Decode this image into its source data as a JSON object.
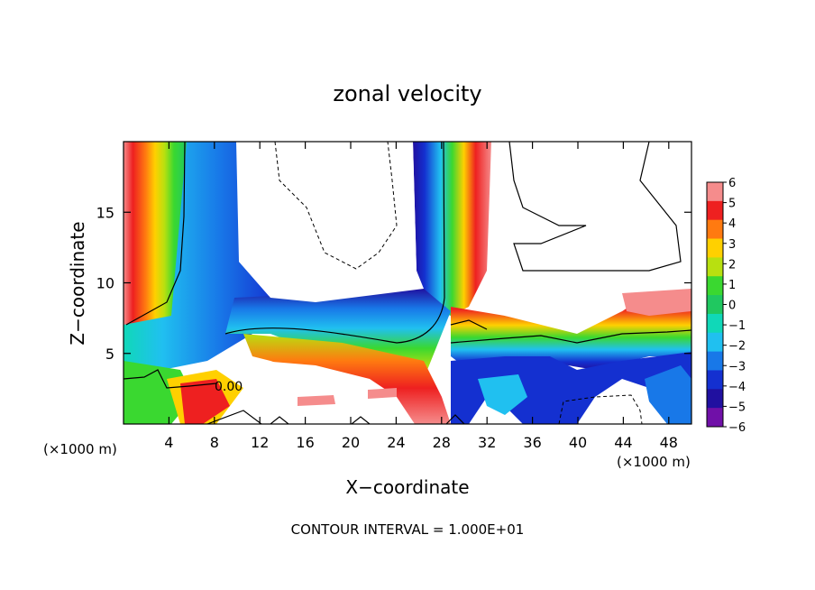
{
  "chart_data": {
    "type": "heatmap",
    "title": "zonal velocity",
    "xlabel": "X−coordinate",
    "ylabel": "Z−coordinate",
    "x_unit_left": "(×1000 m)",
    "x_unit_right": "(×1000 m)",
    "xlim": [
      0,
      50
    ],
    "ylim": [
      0,
      20
    ],
    "x_ticks": [
      4,
      8,
      12,
      16,
      20,
      24,
      28,
      32,
      36,
      40,
      44,
      48
    ],
    "y_ticks": [
      5,
      10,
      15
    ],
    "colorbar": {
      "ticks": [
        "6",
        "5",
        "4",
        "3",
        "2",
        "1",
        "0",
        "−1",
        "−2",
        "−3",
        "−4",
        "−5",
        "−6"
      ],
      "colors": [
        "#f58c8c",
        "#ee2020",
        "#ff7a10",
        "#ffd000",
        "#b8e010",
        "#3ad830",
        "#20c860",
        "#10d8b8",
        "#20c0f0",
        "#1878e8",
        "#1430d0",
        "#2010a0",
        "#7010a8"
      ]
    },
    "contour_label": "0.00",
    "footer": "CONTOUR INTERVAL = 1.000E+01"
  },
  "colors": {
    "positive_strong": "#ee2020",
    "positive_weak": "#f58c8c",
    "neutral": "#3ad830",
    "negative": "#1878e8",
    "negative_strong": "#2010a0",
    "background": "#ffffff"
  }
}
